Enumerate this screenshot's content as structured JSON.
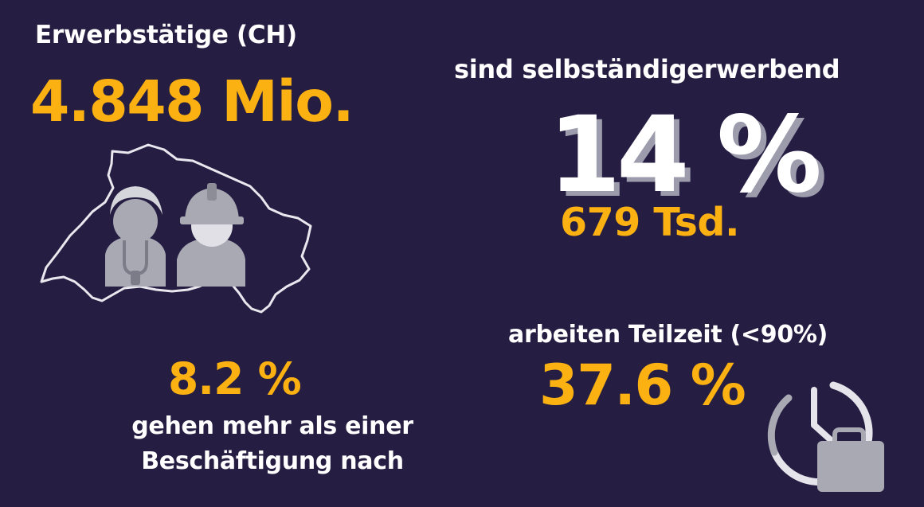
{
  "employed": {
    "title": "Erwerbstätige (CH)",
    "value": "4.848 Mio."
  },
  "self_employed": {
    "label": "sind selbständigerwerbend",
    "percent": "14 %",
    "count": "679 Tsd."
  },
  "multiple_jobs": {
    "percent": "8.2 %",
    "text": "gehen mehr als einer Beschäftigung nach"
  },
  "part_time": {
    "label": "arbeiten Teilzeit (<90%)",
    "percent": "37.6 %"
  },
  "colors": {
    "background": "#251d42",
    "accent": "#fbb112",
    "text": "#ffffff",
    "icon_grey": "#a9a9b3"
  },
  "icons": [
    "switzerland-workers-icon",
    "clock-briefcase-icon"
  ]
}
